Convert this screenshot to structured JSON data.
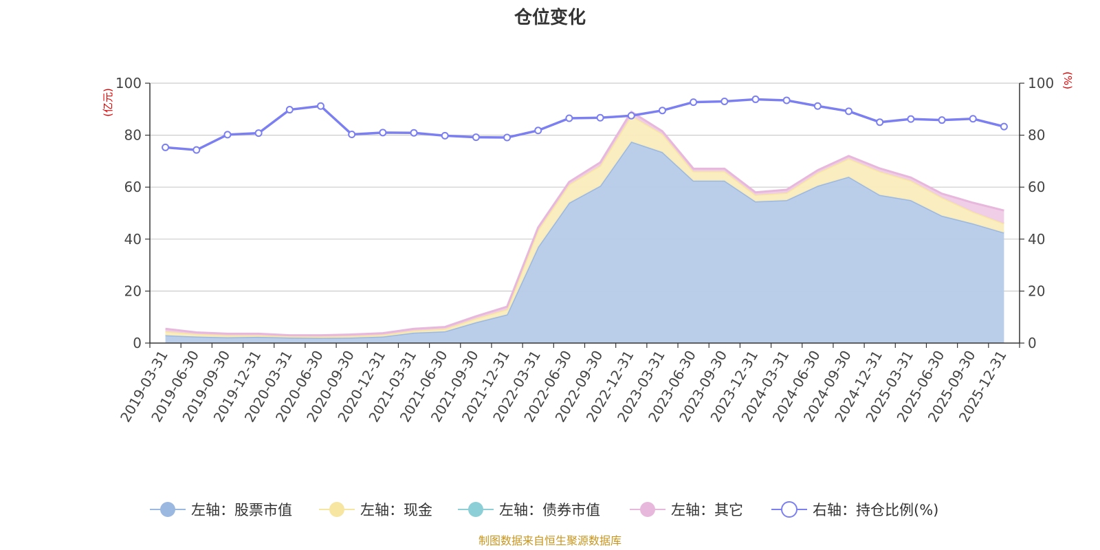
{
  "chart_data": {
    "type": "area",
    "title": "仓位变化",
    "left_axis_unit": "(亿元)",
    "right_axis_unit": "(%)",
    "left_ylim": [
      0,
      100
    ],
    "right_ylim": [
      0,
      100
    ],
    "left_ticks": [
      "0",
      "20",
      "40",
      "60",
      "80",
      "100"
    ],
    "right_ticks": [
      "0",
      "20",
      "40",
      "60",
      "80",
      "100"
    ],
    "categories": [
      "2019-03-31",
      "2019-06-30",
      "2019-09-30",
      "2019-12-31",
      "2020-03-31",
      "2020-06-30",
      "2020-09-30",
      "2020-12-31",
      "2021-03-31",
      "2021-06-30",
      "2021-09-30",
      "2021-12-31",
      "2022-03-31",
      "2022-06-30",
      "2022-09-30",
      "2022-12-31",
      "2023-03-31",
      "2023-06-30",
      "2023-09-30",
      "2023-12-31",
      "2024-03-31",
      "2024-06-30",
      "2024-09-30",
      "2024-12-31",
      "2025-03-31",
      "2025-06-30",
      "2025-09-30",
      "2025-12-31"
    ],
    "series": [
      {
        "name": "左轴：股票市值",
        "axis": "left",
        "kind": "stack-area",
        "color": "#9bb8e0",
        "fill": "#b6cbe9",
        "values": [
          3.0,
          2.5,
          2.2,
          2.4,
          2.1,
          2.0,
          2.1,
          2.5,
          4.0,
          4.5,
          8.0,
          11.0,
          37.0,
          54.0,
          60.5,
          77.5,
          73.5,
          62.5,
          62.5,
          54.5,
          55.0,
          60.5,
          64.0,
          57.0,
          55.0,
          49.0,
          46.0,
          42.5
        ]
      },
      {
        "name": "左轴：现金",
        "axis": "left",
        "kind": "stack-area",
        "color": "#f7e6a1",
        "fill": "#faecbd",
        "values": [
          1.5,
          1.0,
          0.8,
          0.6,
          0.5,
          0.5,
          0.6,
          0.7,
          0.8,
          1.0,
          1.5,
          2.0,
          6.5,
          7.0,
          7.8,
          10.0,
          7.0,
          3.6,
          3.6,
          2.5,
          2.8,
          5.0,
          7.0,
          9.0,
          7.5,
          7.0,
          4.5,
          3.5
        ]
      },
      {
        "name": "左轴：债券市值",
        "axis": "left",
        "kind": "stack-area",
        "color": "#8ccfd6",
        "fill": "#a8dce0",
        "values": [
          0,
          0,
          0,
          0,
          0,
          0,
          0,
          0,
          0,
          0,
          0,
          0,
          0,
          0,
          0,
          0,
          0,
          0,
          0,
          0,
          0,
          0,
          0,
          0,
          0,
          0,
          0,
          0
        ]
      },
      {
        "name": "左轴：其它",
        "axis": "left",
        "kind": "stack-area",
        "color": "#e7b8dc",
        "fill": "#efcbe6",
        "values": [
          1.0,
          0.6,
          0.6,
          0.6,
          0.4,
          0.5,
          0.6,
          0.6,
          0.7,
          0.7,
          0.8,
          1.0,
          1.0,
          1.0,
          1.2,
          1.5,
          1.0,
          1.0,
          1.0,
          1.0,
          1.2,
          1.0,
          1.0,
          1.2,
          1.2,
          1.5,
          3.5,
          5.0
        ]
      },
      {
        "name": "右轴：持仓比例(%)",
        "axis": "right",
        "kind": "line",
        "color": "#7b7ff0",
        "values": [
          75.3,
          74.3,
          80.2,
          80.8,
          89.8,
          91.2,
          80.3,
          81.0,
          80.9,
          79.8,
          79.2,
          79.1,
          81.8,
          86.5,
          86.7,
          87.5,
          89.5,
          92.7,
          93.0,
          93.8,
          93.4,
          91.2,
          89.2,
          85.0,
          86.2,
          85.8,
          86.3,
          83.3
        ]
      }
    ],
    "grid": true,
    "legend_position": "bottom",
    "source_note": "制图数据来自恒生聚源数据库"
  }
}
